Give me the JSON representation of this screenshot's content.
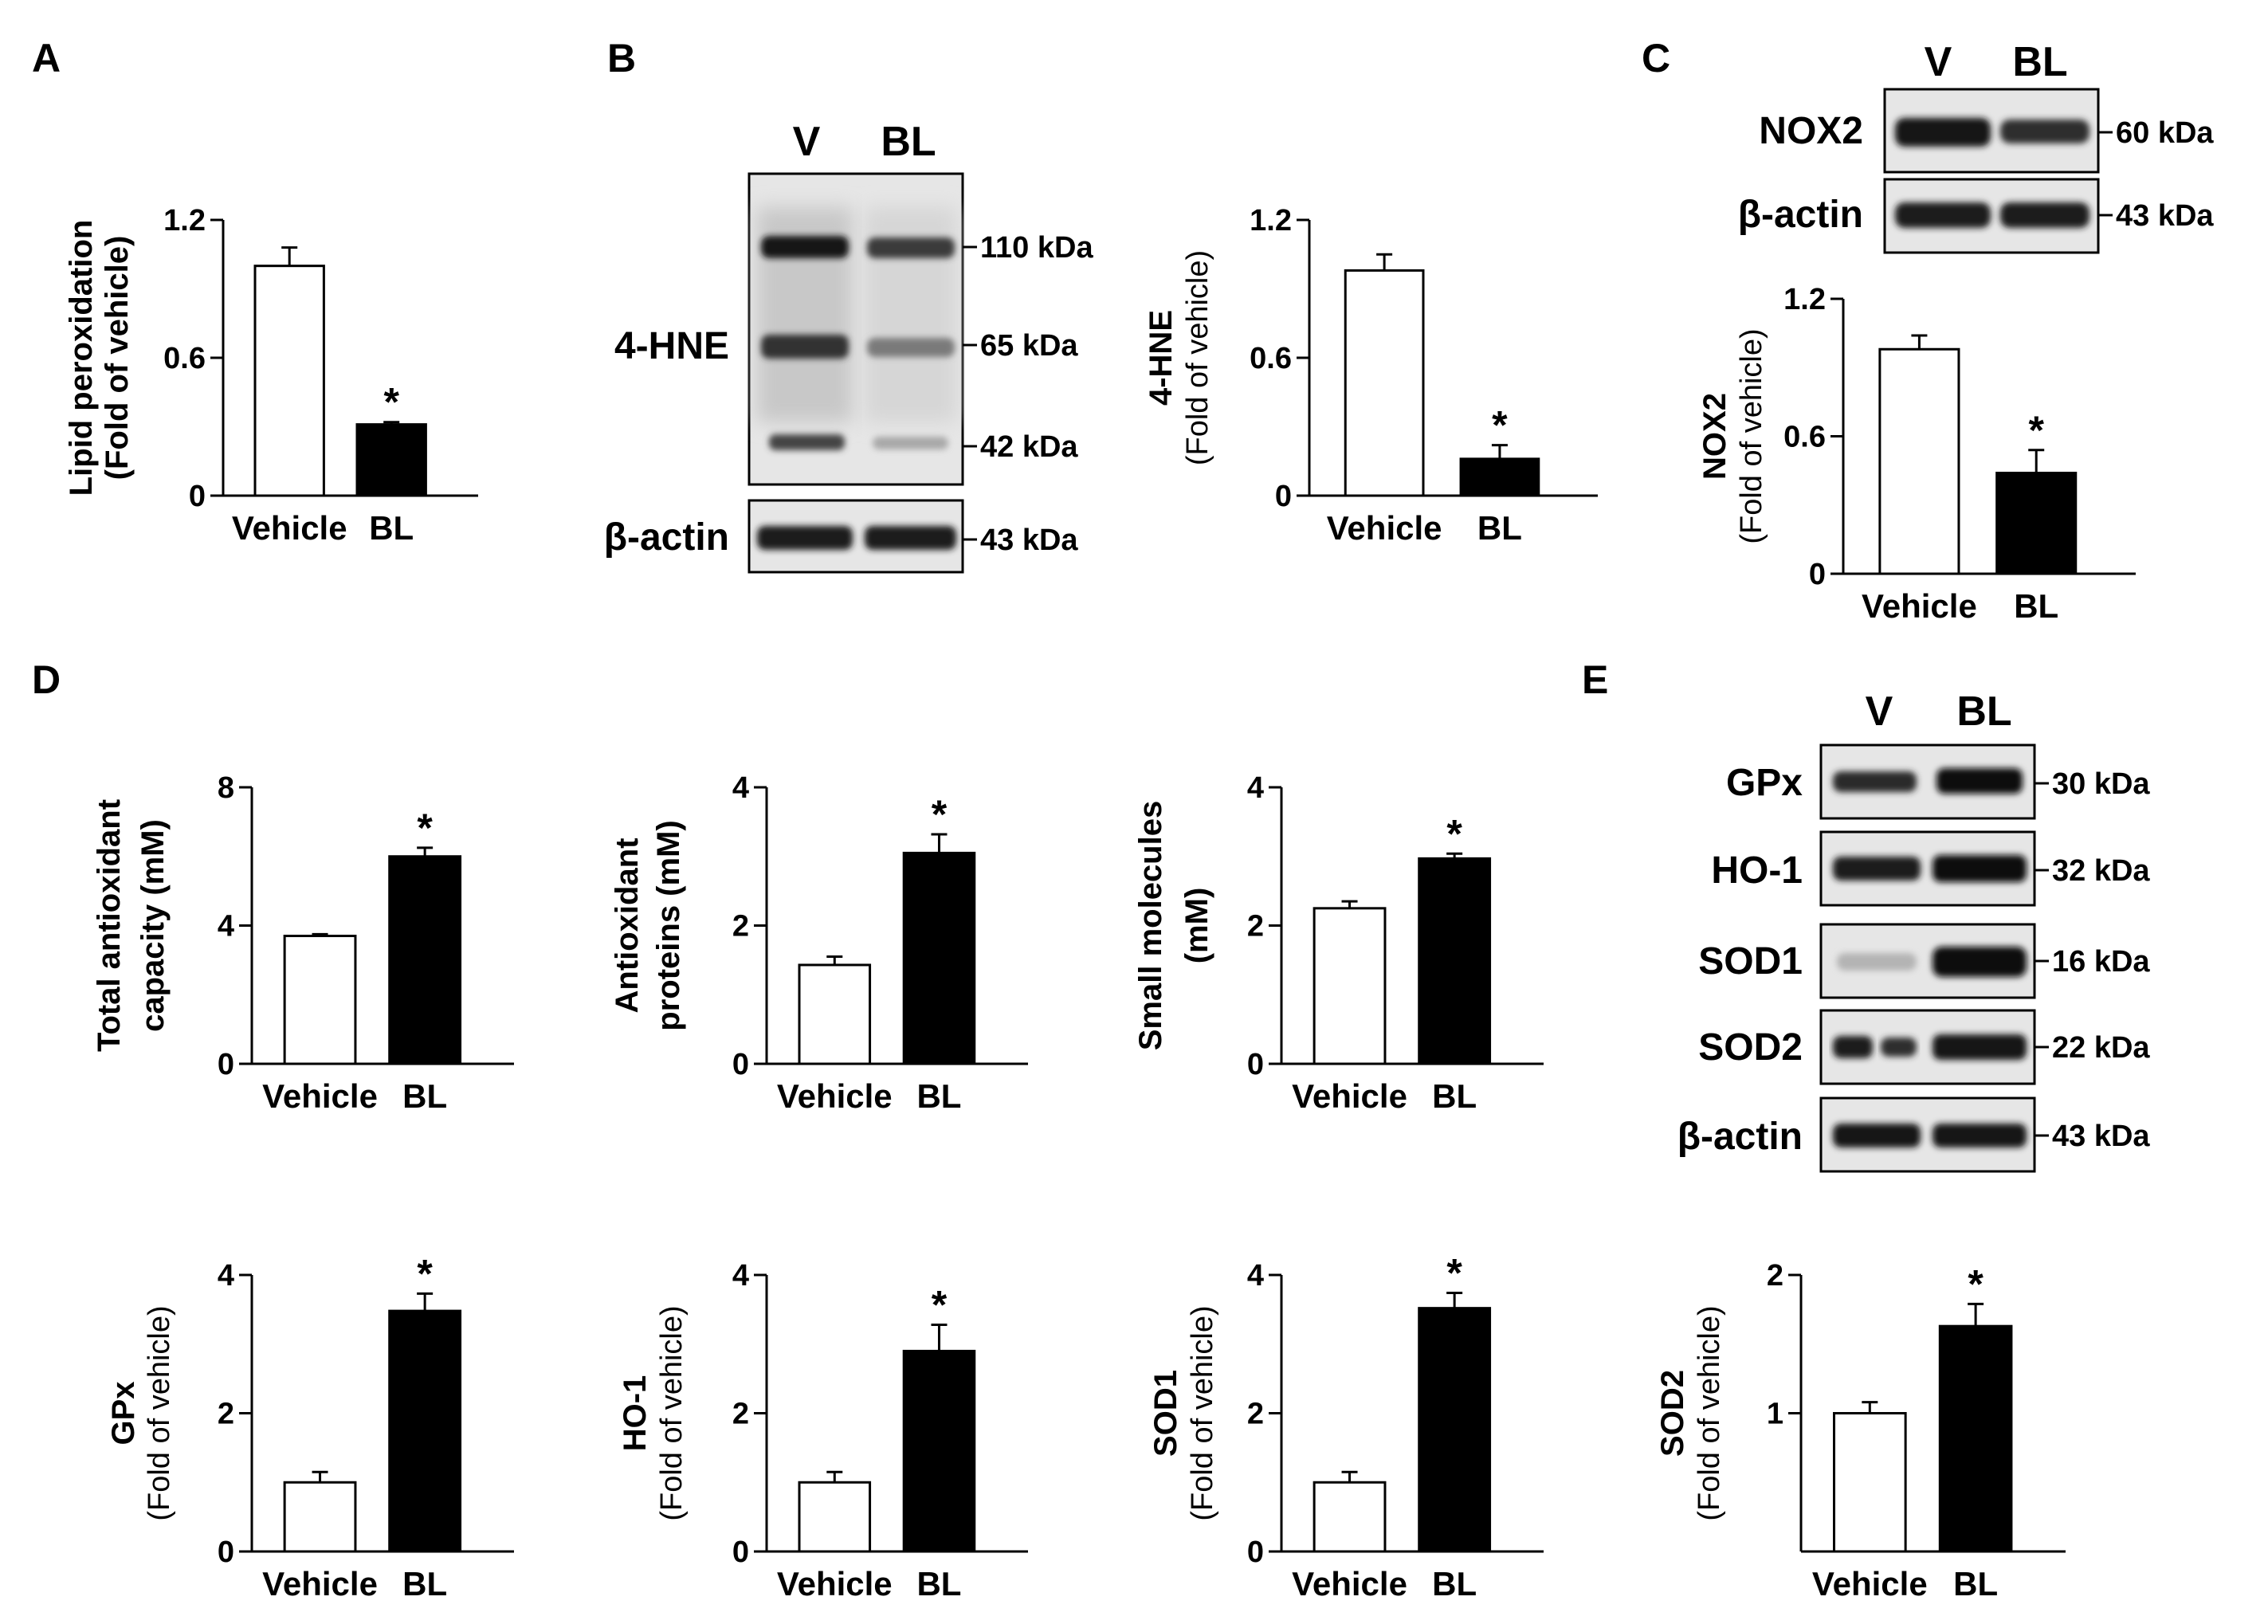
{
  "panels": {
    "A": "A",
    "B": "B",
    "C": "C",
    "D": "D",
    "E": "E"
  },
  "chart_data": [
    {
      "id": "A",
      "type": "bar",
      "categories": [
        "Vehicle",
        "BL"
      ],
      "values": [
        1.0,
        0.31
      ],
      "errors": [
        0.08,
        0.01
      ],
      "ylim": [
        0,
        1.2
      ],
      "yticks": [
        "0",
        "0.6",
        "1.2"
      ],
      "ytick_values": [
        0,
        0.6,
        1.2
      ],
      "ylabel": [
        "Lipid peroxidation",
        "(Fold of vehicle)"
      ],
      "significance": [
        "",
        "*"
      ],
      "fill": [
        "#ffffff",
        "#000000"
      ]
    },
    {
      "id": "B",
      "type": "bar",
      "categories": [
        "Vehicle",
        "BL"
      ],
      "values": [
        0.98,
        0.16
      ],
      "errors": [
        0.07,
        0.06
      ],
      "ylim": [
        0,
        1.2
      ],
      "yticks": [
        "0",
        "0.6",
        "1.2"
      ],
      "ytick_values": [
        0,
        0.6,
        1.2
      ],
      "ylabel": [
        "4-HNE",
        "(Fold of vehicle)"
      ],
      "significance": [
        "",
        "*"
      ],
      "fill": [
        "#ffffff",
        "#000000"
      ]
    },
    {
      "id": "C",
      "type": "bar",
      "categories": [
        "Vehicle",
        "BL"
      ],
      "values": [
        0.98,
        0.44
      ],
      "errors": [
        0.06,
        0.1
      ],
      "ylim": [
        0,
        1.2
      ],
      "yticks": [
        "0",
        "0.6",
        "1.2"
      ],
      "ytick_values": [
        0,
        0.6,
        1.2
      ],
      "ylabel": [
        "NOX2",
        "(Fold of vehicle)"
      ],
      "significance": [
        "",
        "*"
      ],
      "fill": [
        "#ffffff",
        "#000000"
      ]
    },
    {
      "id": "D1",
      "type": "bar",
      "categories": [
        "Vehicle",
        "BL"
      ],
      "values": [
        3.7,
        6.0
      ],
      "errors": [
        0.05,
        0.25
      ],
      "ylim": [
        0,
        8
      ],
      "yticks": [
        "0",
        "4",
        "8"
      ],
      "ytick_values": [
        0,
        4,
        8
      ],
      "ylabel": [
        "Total antioxidant",
        "capacity (mM)"
      ],
      "significance": [
        "",
        "*"
      ],
      "fill": [
        "#ffffff",
        "#000000"
      ]
    },
    {
      "id": "D2",
      "type": "bar",
      "categories": [
        "Vehicle",
        "BL"
      ],
      "values": [
        1.43,
        3.05
      ],
      "errors": [
        0.12,
        0.27
      ],
      "ylim": [
        0,
        4
      ],
      "yticks": [
        "0",
        "2",
        "4"
      ],
      "ytick_values": [
        0,
        2,
        4
      ],
      "ylabel": [
        "Antioxidant",
        "proteins (mM)"
      ],
      "significance": [
        "",
        "*"
      ],
      "fill": [
        "#ffffff",
        "#000000"
      ]
    },
    {
      "id": "D3",
      "type": "bar",
      "categories": [
        "Vehicle",
        "BL"
      ],
      "values": [
        2.25,
        2.97
      ],
      "errors": [
        0.1,
        0.07
      ],
      "ylim": [
        0,
        4
      ],
      "yticks": [
        "0",
        "2",
        "4"
      ],
      "ytick_values": [
        0,
        2,
        4
      ],
      "ylabel": [
        "Small molecules",
        "(mM)"
      ],
      "significance": [
        "",
        "*"
      ],
      "fill": [
        "#ffffff",
        "#000000"
      ]
    },
    {
      "id": "D4",
      "type": "bar",
      "categories": [
        "Vehicle",
        "BL"
      ],
      "values": [
        1.0,
        3.48
      ],
      "errors": [
        0.15,
        0.25
      ],
      "ylim": [
        0,
        4
      ],
      "yticks": [
        "0",
        "2",
        "4"
      ],
      "ytick_values": [
        0,
        2,
        4
      ],
      "ylabel": [
        "GPx",
        "(Fold of vehicle)"
      ],
      "significance": [
        "",
        "*"
      ],
      "fill": [
        "#ffffff",
        "#000000"
      ]
    },
    {
      "id": "D5",
      "type": "bar",
      "categories": [
        "Vehicle",
        "BL"
      ],
      "values": [
        1.0,
        2.9
      ],
      "errors": [
        0.15,
        0.38
      ],
      "ylim": [
        0,
        4
      ],
      "yticks": [
        "0",
        "2",
        "4"
      ],
      "ytick_values": [
        0,
        2,
        4
      ],
      "ylabel": [
        "HO-1",
        "(Fold of vehicle)"
      ],
      "significance": [
        "",
        "*"
      ],
      "fill": [
        "#ffffff",
        "#000000"
      ]
    },
    {
      "id": "D6",
      "type": "bar",
      "categories": [
        "Vehicle",
        "BL"
      ],
      "values": [
        1.0,
        3.52
      ],
      "errors": [
        0.15,
        0.22
      ],
      "ylim": [
        0,
        4
      ],
      "yticks": [
        "0",
        "2",
        "4"
      ],
      "ytick_values": [
        0,
        2,
        4
      ],
      "ylabel": [
        "SOD1",
        "(Fold of vehicle)"
      ],
      "significance": [
        "",
        "*"
      ],
      "fill": [
        "#ffffff",
        "#000000"
      ]
    },
    {
      "id": "D7",
      "type": "bar",
      "categories": [
        "Vehicle",
        "BL"
      ],
      "values": [
        1.0,
        1.63
      ],
      "errors": [
        0.08,
        0.16
      ],
      "ylim": [
        0,
        2
      ],
      "yticks": [
        "1",
        "2"
      ],
      "ytick_values": [
        1,
        2
      ],
      "ylabel": [
        "SOD2",
        "(Fold of vehicle)"
      ],
      "significance": [
        "",
        "*"
      ],
      "fill": [
        "#ffffff",
        "#000000"
      ]
    }
  ],
  "blots": {
    "B": {
      "lanes": [
        "V",
        "BL"
      ],
      "rows": [
        {
          "label": "4-HNE",
          "markers": [
            "110 kDa",
            "65 kDa",
            "42 kDa"
          ]
        },
        {
          "label": "β-actin",
          "markers": [
            "43 kDa"
          ]
        }
      ]
    },
    "C": {
      "lanes": [
        "V",
        "BL"
      ],
      "rows": [
        {
          "label": "NOX2",
          "markers": [
            "60 kDa"
          ]
        },
        {
          "label": "β-actin",
          "markers": [
            "43 kDa"
          ]
        }
      ]
    },
    "E": {
      "lanes": [
        "V",
        "BL"
      ],
      "rows": [
        {
          "label": "GPx",
          "markers": [
            "30 kDa"
          ]
        },
        {
          "label": "HO-1",
          "markers": [
            "32 kDa"
          ]
        },
        {
          "label": "SOD1",
          "markers": [
            "16 kDa"
          ]
        },
        {
          "label": "SOD2",
          "markers": [
            "22 kDa"
          ]
        },
        {
          "label": "β-actin",
          "markers": [
            "43 kDa"
          ]
        }
      ]
    }
  }
}
